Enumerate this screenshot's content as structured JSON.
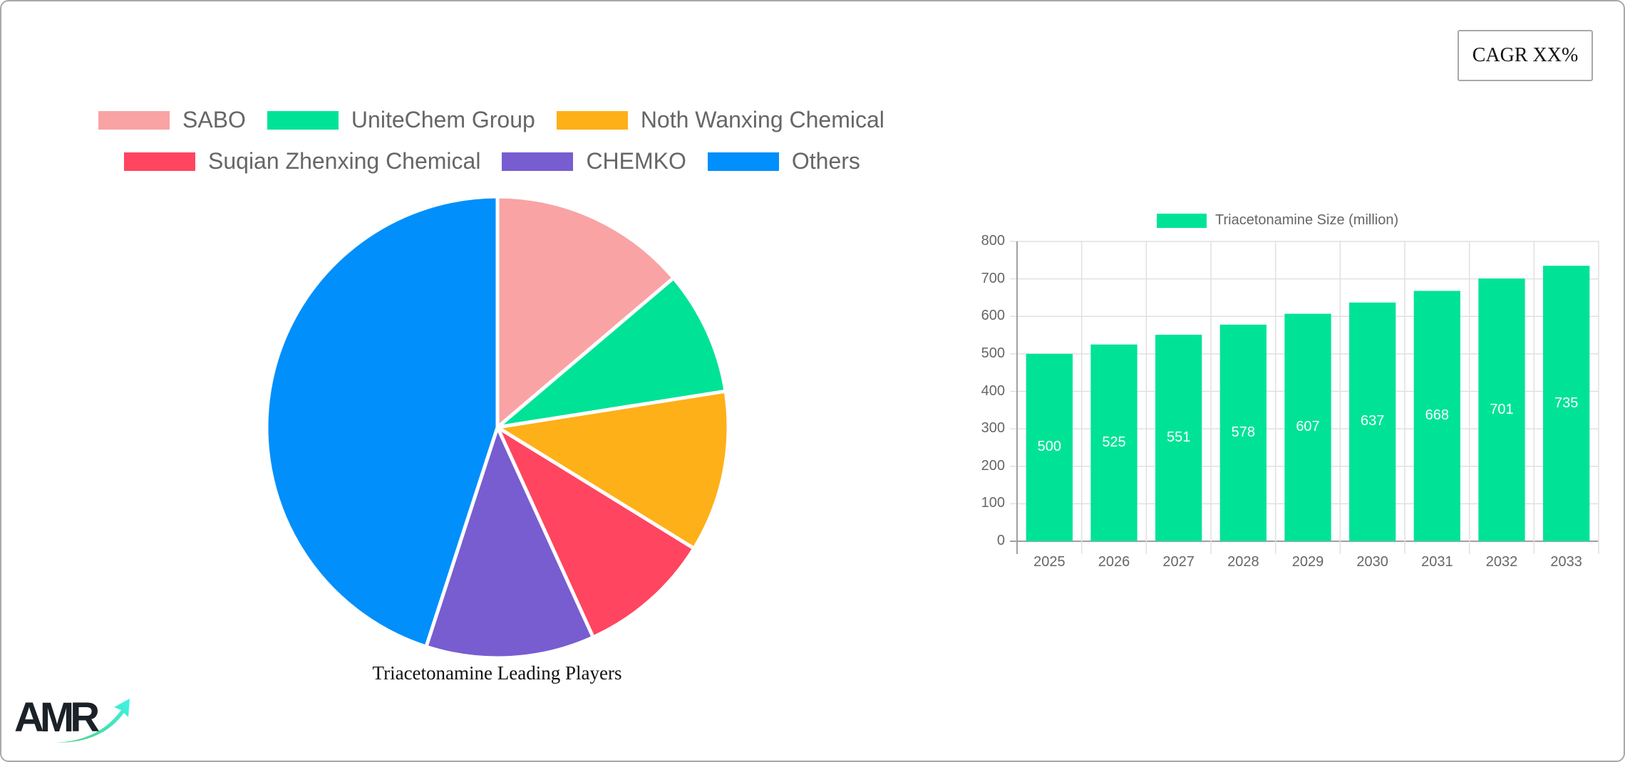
{
  "badge": {
    "cagr_label": "CAGR XX%"
  },
  "pie_legend": [
    {
      "label": "SABO",
      "color": "#f9a3a4"
    },
    {
      "label": "UniteChem Group",
      "color": "#00e396"
    },
    {
      "label": "Noth Wanxing Chemical",
      "color": "#feb019"
    },
    {
      "label": "Suqian Zhenxing Chemical",
      "color": "#ff4560"
    },
    {
      "label": "CHEMKO",
      "color": "#775dd0"
    },
    {
      "label": "Others",
      "color": "#008ffb"
    }
  ],
  "bar_legend": {
    "label": "Triacetonamine Size (million)",
    "color": "#00e396"
  },
  "logo": {
    "text": "AMR"
  },
  "chart_data": [
    {
      "type": "pie",
      "title": "Triacetonamine Leading Players",
      "categories": [
        "SABO",
        "UniteChem Group",
        "Noth Wanxing Chemical",
        "Suqian Zhenxing Chemical",
        "CHEMKO",
        "Others"
      ],
      "values": [
        13.8,
        8.7,
        11.3,
        9.4,
        11.8,
        45.0
      ],
      "colors": [
        "#f9a3a4",
        "#00e396",
        "#feb019",
        "#ff4560",
        "#775dd0",
        "#008ffb"
      ],
      "legend_position": "top"
    },
    {
      "type": "bar",
      "title": "",
      "categories": [
        "2025",
        "2026",
        "2027",
        "2028",
        "2029",
        "2030",
        "2031",
        "2032",
        "2033"
      ],
      "series": [
        {
          "name": "Triacetonamine Size (million)",
          "values": [
            500,
            525,
            551,
            578,
            607,
            637,
            668,
            701,
            735
          ],
          "color": "#00e396"
        }
      ],
      "xlabel": "",
      "ylabel": "",
      "ylim": [
        0,
        800
      ],
      "yticks": [
        0,
        100,
        200,
        300,
        400,
        500,
        600,
        700,
        800
      ],
      "grid": true,
      "data_labels": true,
      "legend_position": "top"
    }
  ]
}
